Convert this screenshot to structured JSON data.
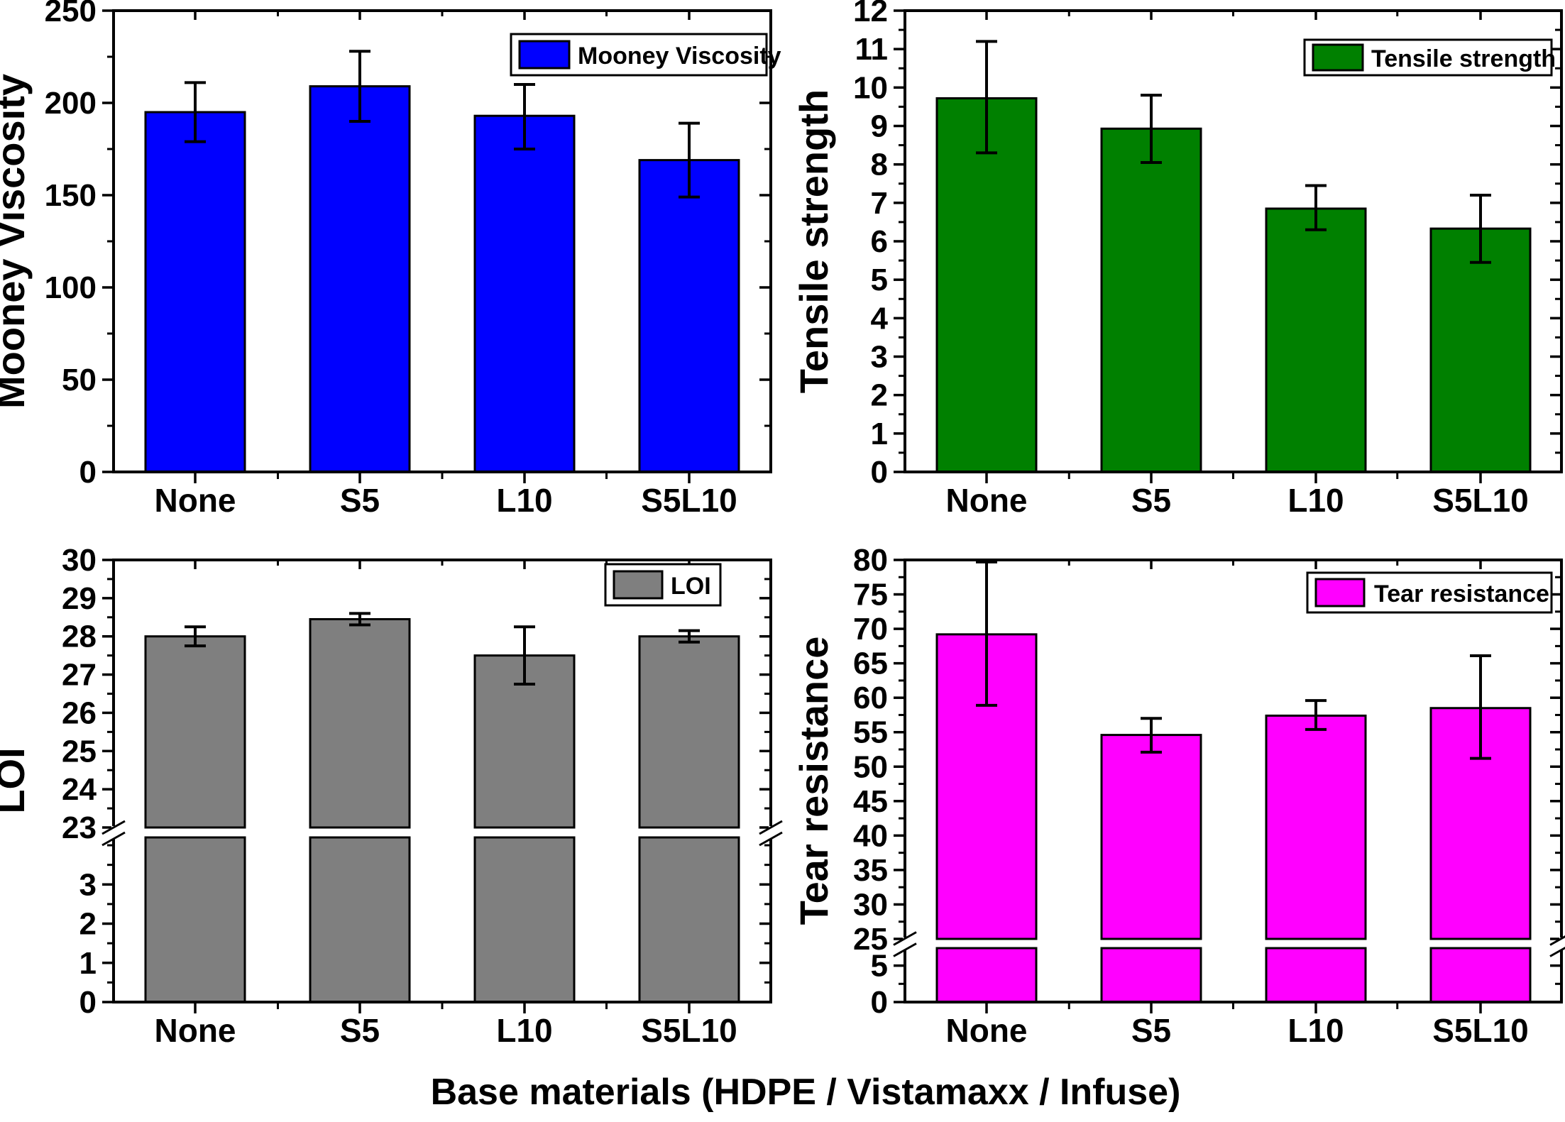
{
  "figure": {
    "xlabel": "Base materials (HDPE / Vistamaxx / Infuse)",
    "frame_color": "#000000",
    "background": "#ffffff"
  },
  "chart_data": [
    {
      "type": "bar",
      "position": "top-left",
      "legend": "Mooney Viscosity",
      "ylabel": "Mooney Viscosity",
      "color": "#0000ff",
      "categories": [
        "None",
        "S5",
        "L10",
        "S5L10"
      ],
      "values": [
        195,
        209,
        193,
        169
      ],
      "err_minus": [
        16,
        19,
        18,
        20
      ],
      "err_plus": [
        16,
        19,
        17,
        20
      ],
      "ylim": [
        0,
        250
      ],
      "ytick_labels": [
        "0",
        "50",
        "100",
        "150",
        "200",
        "250"
      ],
      "minor_step": 25,
      "grid": "off",
      "legend_position": "top-right"
    },
    {
      "type": "bar",
      "position": "top-right",
      "legend": "Tensile strength",
      "ylabel": "Tensile strength",
      "color": "#008000",
      "categories": [
        "None",
        "S5",
        "L10",
        "S5L10"
      ],
      "values": [
        9.72,
        8.93,
        6.85,
        6.33
      ],
      "err_minus": [
        1.42,
        0.88,
        0.55,
        0.88
      ],
      "err_plus": [
        1.48,
        0.87,
        0.6,
        0.87
      ],
      "ylim": [
        0,
        12
      ],
      "ytick_labels": [
        "0",
        "1",
        "2",
        "3",
        "4",
        "5",
        "6",
        "7",
        "8",
        "9",
        "10",
        "11",
        "12"
      ],
      "minor_step": 0.5,
      "grid": "off",
      "legend_position": "top-right"
    },
    {
      "type": "bar",
      "position": "bottom-left",
      "legend": "LOI",
      "ylabel": "LOI",
      "color": "#7f7f7f",
      "categories": [
        "None",
        "S5",
        "L10",
        "S5L10"
      ],
      "values": [
        28.0,
        28.45,
        27.5,
        28.0
      ],
      "err_minus": [
        0.25,
        0.15,
        0.75,
        0.15
      ],
      "err_plus": [
        0.25,
        0.15,
        0.75,
        0.15
      ],
      "axis_break": true,
      "upper": {
        "ylim": [
          23,
          30
        ],
        "tick_labels": [
          "23",
          "24",
          "25",
          "26",
          "27",
          "28",
          "29",
          "30"
        ],
        "minor_step": 0.5
      },
      "lower": {
        "ylim": [
          0,
          4.2
        ],
        "tick_labels": [
          "0",
          "1",
          "2",
          "3"
        ],
        "minor_step": 0.5
      },
      "grid": "off",
      "legend_position": "top-right"
    },
    {
      "type": "bar",
      "position": "bottom-right",
      "legend": "Tear resistance",
      "ylabel": "Tear resistance",
      "color": "#ff00ff",
      "categories": [
        "None",
        "S5",
        "L10",
        "S5L10"
      ],
      "values": [
        69.2,
        54.6,
        57.4,
        58.5
      ],
      "err_minus": [
        10.3,
        2.5,
        2.0,
        7.3
      ],
      "err_plus": [
        10.5,
        2.4,
        2.2,
        7.6
      ],
      "axis_break": true,
      "upper": {
        "ylim": [
          25,
          80
        ],
        "tick_labels": [
          "25",
          "30",
          "35",
          "40",
          "45",
          "50",
          "55",
          "60",
          "65",
          "70",
          "75",
          "80"
        ],
        "minor_step": 2.5
      },
      "lower": {
        "ylim": [
          0,
          7.4
        ],
        "tick_labels": [
          "0",
          "5"
        ],
        "minor_step": 2.5
      },
      "grid": "off",
      "legend_position": "top-right"
    }
  ]
}
